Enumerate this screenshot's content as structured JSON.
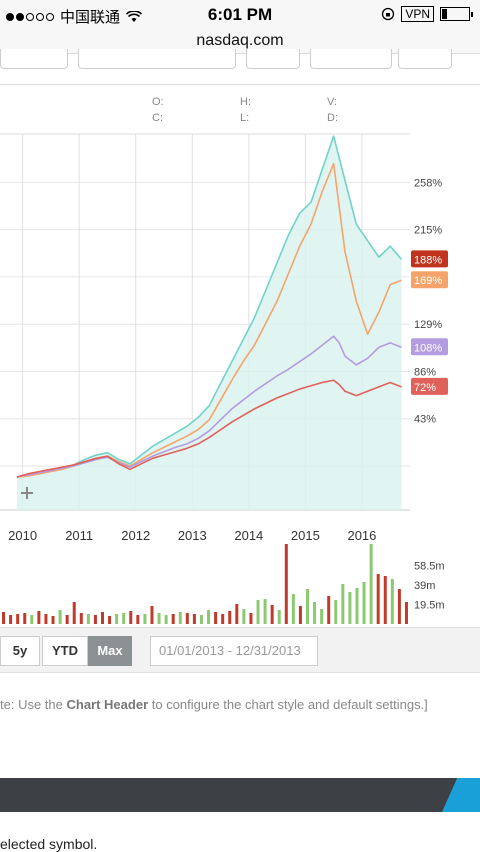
{
  "status_bar": {
    "carrier": "中国联通",
    "time": "6:01 PM",
    "vpn": "VPN"
  },
  "url": "nasdaq.com",
  "ohlc_labels": [
    "O:",
    "C:",
    "H:",
    "L:",
    "V:",
    "D:"
  ],
  "colors": {
    "teal_series": "#6fd3c9",
    "orange_series": "#f5a36a",
    "purple_series": "#b39ce0",
    "red_series": "#e0605a",
    "volume_green": "#8cc870",
    "volume_red": "#c23a2a"
  },
  "chart_data": [
    {
      "type": "line",
      "xlabel": "",
      "ylabel": "",
      "x_tick_labels": [
        "2010",
        "2011",
        "2012",
        "2013",
        "2014",
        "2015",
        "2016"
      ],
      "y_tick_labels": [
        "258%",
        "215%",
        "129%",
        "86%",
        "43%"
      ],
      "y_ticks": [
        258,
        215,
        129,
        86,
        43
      ],
      "series": [
        {
          "color": "#6fd3c9",
          "end_label": "188%",
          "end_label_color": "#c0341e",
          "x": [
            2009.9,
            2010.1,
            2010.3,
            2010.5,
            2010.7,
            2010.9,
            2011.1,
            2011.3,
            2011.5,
            2011.7,
            2011.9,
            2012.1,
            2012.3,
            2012.5,
            2012.7,
            2012.9,
            2013.1,
            2013.3,
            2013.5,
            2013.7,
            2013.9,
            2014.1,
            2014.3,
            2014.5,
            2014.7,
            2014.9,
            2015.1,
            2015.3,
            2015.5,
            2015.6,
            2015.7,
            2015.9,
            2016.1,
            2016.3,
            2016.5,
            2016.7
          ],
          "values": [
            -10,
            -8,
            -6,
            -4,
            -2,
            1,
            6,
            10,
            12,
            6,
            2,
            10,
            18,
            24,
            30,
            36,
            44,
            55,
            75,
            95,
            115,
            135,
            160,
            185,
            210,
            230,
            240,
            270,
            300,
            280,
            260,
            220,
            205,
            190,
            200,
            188
          ]
        },
        {
          "color": "#f5a36a",
          "end_label": "169%",
          "end_label_color": "#f5a36a",
          "x": [
            2009.9,
            2010.1,
            2010.3,
            2010.5,
            2010.7,
            2010.9,
            2011.1,
            2011.3,
            2011.5,
            2011.7,
            2011.9,
            2012.1,
            2012.3,
            2012.5,
            2012.7,
            2012.9,
            2013.1,
            2013.3,
            2013.5,
            2013.7,
            2013.9,
            2014.1,
            2014.3,
            2014.5,
            2014.7,
            2014.9,
            2015.1,
            2015.3,
            2015.5,
            2015.6,
            2015.7,
            2015.9,
            2016.1,
            2016.3,
            2016.5,
            2016.7
          ],
          "values": [
            -10,
            -9,
            -7,
            -5,
            -3,
            0,
            4,
            7,
            9,
            4,
            0,
            6,
            12,
            17,
            22,
            27,
            33,
            42,
            60,
            78,
            95,
            110,
            130,
            150,
            175,
            200,
            220,
            250,
            275,
            235,
            195,
            150,
            120,
            140,
            165,
            169
          ]
        },
        {
          "color": "#b39ce0",
          "end_label": "108%",
          "end_label_color": "#b39ce0",
          "x": [
            2009.9,
            2010.1,
            2010.3,
            2010.5,
            2010.7,
            2010.9,
            2011.1,
            2011.3,
            2011.5,
            2011.7,
            2011.9,
            2012.1,
            2012.3,
            2012.5,
            2012.7,
            2012.9,
            2013.1,
            2013.3,
            2013.5,
            2013.7,
            2013.9,
            2014.1,
            2014.3,
            2014.5,
            2014.7,
            2014.9,
            2015.1,
            2015.3,
            2015.5,
            2015.6,
            2015.7,
            2015.9,
            2016.1,
            2016.3,
            2016.5,
            2016.7
          ],
          "values": [
            -10,
            -8,
            -6,
            -4,
            -2,
            0,
            3,
            6,
            8,
            3,
            -1,
            4,
            9,
            13,
            17,
            20,
            25,
            32,
            42,
            52,
            60,
            68,
            75,
            82,
            88,
            95,
            102,
            110,
            118,
            112,
            100,
            92,
            98,
            108,
            112,
            108
          ]
        },
        {
          "color": "#e0605a",
          "end_label": "72%",
          "end_label_color": "#e0605a",
          "x": [
            2009.9,
            2010.1,
            2010.3,
            2010.5,
            2010.7,
            2010.9,
            2011.1,
            2011.3,
            2011.5,
            2011.7,
            2011.9,
            2012.1,
            2012.3,
            2012.5,
            2012.7,
            2012.9,
            2013.1,
            2013.3,
            2013.5,
            2013.7,
            2013.9,
            2014.1,
            2014.3,
            2014.5,
            2014.7,
            2014.9,
            2015.1,
            2015.3,
            2015.5,
            2015.6,
            2015.7,
            2015.9,
            2016.1,
            2016.3,
            2016.5,
            2016.7
          ],
          "values": [
            -10,
            -7,
            -5,
            -3,
            -1,
            1,
            4,
            7,
            9,
            2,
            -3,
            2,
            7,
            10,
            13,
            16,
            20,
            26,
            33,
            40,
            46,
            52,
            57,
            62,
            66,
            70,
            73,
            76,
            78,
            74,
            68,
            64,
            68,
            72,
            76,
            72
          ]
        }
      ]
    },
    {
      "type": "bar",
      "y_tick_labels": [
        "58.5m",
        "39m",
        "19.5m"
      ],
      "y_ticks": [
        58.5,
        39,
        19.5
      ],
      "values": [
        12,
        9,
        10,
        11,
        9,
        13,
        10,
        8,
        14,
        9,
        22,
        11,
        10,
        9,
        12,
        8,
        10,
        11,
        13,
        9,
        10,
        18,
        11,
        9,
        10,
        12,
        11,
        10,
        9,
        14,
        12,
        10,
        13,
        20,
        15,
        11,
        24,
        25,
        19,
        14,
        80,
        30,
        18,
        35,
        22,
        15,
        28,
        24,
        40,
        32,
        36,
        42,
        80,
        50,
        48,
        45,
        35,
        22
      ],
      "bar_colors": [
        "r",
        "r",
        "r",
        "r",
        "g",
        "r",
        "r",
        "r",
        "g",
        "r",
        "r",
        "r",
        "g",
        "r",
        "r",
        "r",
        "g",
        "g",
        "r",
        "r",
        "g",
        "r",
        "g",
        "g",
        "r",
        "g",
        "r",
        "r",
        "g",
        "g",
        "r",
        "r",
        "r",
        "r",
        "g",
        "r",
        "g",
        "g",
        "r",
        "g",
        "r",
        "g",
        "r",
        "g",
        "g",
        "g",
        "r",
        "g",
        "g",
        "g",
        "g",
        "g",
        "g",
        "r",
        "r",
        "g",
        "r",
        "r"
      ]
    }
  ],
  "range_buttons": [
    "5y",
    "YTD",
    "Max"
  ],
  "active_range": "Max",
  "date_range": "01/01/2013 - 12/31/2013",
  "note": {
    "prefix": "te: Use the ",
    "bold": "Chart Header",
    "suffix": " to configure the chart style and default settings.]"
  },
  "bottom_text": "elected symbol."
}
